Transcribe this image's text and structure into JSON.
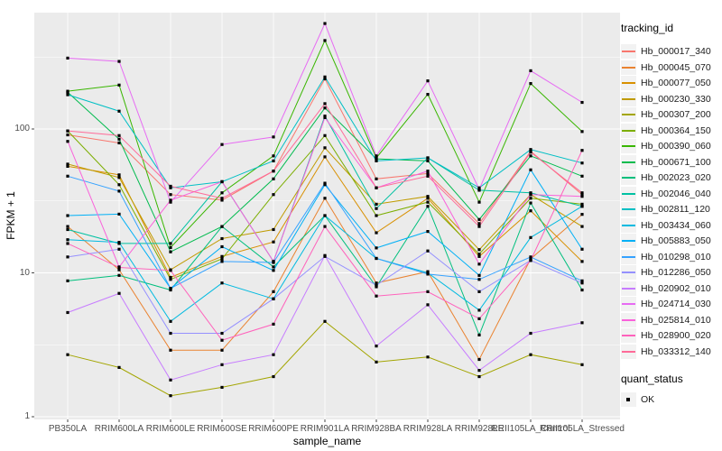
{
  "figure": {
    "background": "#FFFFFF",
    "panel_bg": "#EBEBEB",
    "grid_color": "#FFFFFF",
    "axis_text_color": "#4D4D4D",
    "point_color": "#000000",
    "legend_key_bg": "#F2F2F2"
  },
  "chart_data": {
    "type": "line",
    "title": "",
    "xlabel": "sample_name",
    "ylabel": "FPKM + 1",
    "y_scale": "log10",
    "y_ticks": [
      1,
      10,
      100
    ],
    "y_minor_ticks": [
      3.1623,
      31.623,
      316.23
    ],
    "ylim": [
      0.95,
      640
    ],
    "grid": true,
    "legend_position": "right",
    "legend_title": "tracking_id",
    "categories": [
      "PB350LA",
      "RRIM600LA",
      "RRIM600LE",
      "RRIM600SE",
      "RRIM600PE",
      "RRIM901LA",
      "RRIM928BA",
      "RRIM928LA",
      "RRIM928LE",
      "RRII105LA_Control",
      "RRII105LA_Stressed"
    ],
    "series": [
      {
        "name": "Hb_000017_340",
        "color": "#F8766D",
        "values": [
          91,
          80,
          35,
          32,
          51,
          223,
          45,
          49,
          22,
          70,
          35
        ]
      },
      {
        "name": "Hb_000045_070",
        "color": "#EA8331",
        "values": [
          21,
          10.5,
          2.9,
          2.9,
          7.4,
          33,
          8.5,
          10.2,
          2.5,
          12.5,
          25.5
        ]
      },
      {
        "name": "Hb_000077_050",
        "color": "#D89000",
        "values": [
          55,
          48,
          9.3,
          13,
          16.4,
          64,
          19,
          33,
          13,
          27,
          12
        ]
      },
      {
        "name": "Hb_000230_330",
        "color": "#C09B00",
        "values": [
          57,
          46,
          10.5,
          17.3,
          20,
          74,
          30,
          34,
          14.5,
          35,
          21
        ]
      },
      {
        "name": "Hb_000307_200",
        "color": "#A3A500",
        "values": [
          2.7,
          2.2,
          1.4,
          1.6,
          1.9,
          4.6,
          2.4,
          2.6,
          1.9,
          2.7,
          2.3
        ]
      },
      {
        "name": "Hb_000364_150",
        "color": "#7CAE00",
        "values": [
          97,
          41,
          9,
          12.5,
          35,
          90,
          25,
          31,
          13.5,
          33,
          30
        ]
      },
      {
        "name": "Hb_000390_060",
        "color": "#39B600",
        "values": [
          183,
          202,
          15,
          36,
          65,
          412,
          63,
          174,
          31,
          207,
          96
        ]
      },
      {
        "name": "Hb_000671_100",
        "color": "#00BB4E",
        "values": [
          180,
          85,
          14,
          21,
          45,
          140,
          62,
          60,
          23.5,
          65,
          47
        ]
      },
      {
        "name": "Hb_002023_020",
        "color": "#00BF7D",
        "values": [
          8.8,
          9.6,
          7.6,
          21,
          11,
          25,
          8,
          29,
          3.7,
          30.6,
          7.6
        ]
      },
      {
        "name": "Hb_002046_040",
        "color": "#00C1A3",
        "values": [
          20,
          16,
          16,
          43,
          12,
          123,
          28,
          63,
          37.5,
          36,
          29
        ]
      },
      {
        "name": "Hb_002811_120",
        "color": "#00BFC4",
        "values": [
          173,
          133,
          39,
          43,
          60,
          230,
          60,
          63,
          39,
          72,
          58
        ]
      },
      {
        "name": "Hb_003434_060",
        "color": "#00BAE0",
        "values": [
          17,
          16.3,
          4.6,
          8.5,
          6.6,
          25,
          12.6,
          10,
          5.5,
          17.6,
          29
        ]
      },
      {
        "name": "Hb_005883_050",
        "color": "#00B0F6",
        "values": [
          25,
          25.6,
          7.8,
          15.2,
          10.4,
          41,
          14.9,
          19.4,
          9.6,
          52,
          14.6
        ]
      },
      {
        "name": "Hb_010298_010",
        "color": "#35A2FF",
        "values": [
          47,
          37,
          7.8,
          12,
          11.8,
          42,
          12.6,
          9.8,
          9,
          12.9,
          8.8
        ]
      },
      {
        "name": "Hb_012286_050",
        "color": "#9590FF",
        "values": [
          12.9,
          14.6,
          3.8,
          3.8,
          6.6,
          13,
          8.2,
          14.2,
          7.4,
          12.2,
          8.5
        ]
      },
      {
        "name": "Hb_020902_010",
        "color": "#C77CFF",
        "values": [
          5.3,
          7.2,
          1.8,
          2.3,
          2.7,
          13.2,
          3.1,
          6,
          2.1,
          3.8,
          4.5
        ]
      },
      {
        "name": "Hb_024714_030",
        "color": "#E76BF3",
        "values": [
          311,
          295,
          31,
          78,
          88,
          541,
          65,
          216,
          38,
          254,
          153
        ]
      },
      {
        "name": "Hb_025814_010",
        "color": "#FA62DB",
        "values": [
          82,
          11,
          32,
          43,
          12,
          120,
          39,
          51,
          11.5,
          35,
          34
        ]
      },
      {
        "name": "Hb_028900_020",
        "color": "#FF62BC",
        "values": [
          16,
          10.9,
          10.4,
          3.4,
          4.4,
          21,
          6.9,
          7.4,
          4.8,
          12.2,
          71
        ]
      },
      {
        "name": "Hb_033312_140",
        "color": "#FF6A98",
        "values": [
          97,
          90,
          40,
          33,
          51,
          150,
          39,
          47,
          21,
          69,
          36
        ]
      }
    ],
    "legend2": {
      "title": "quant_status",
      "items": [
        {
          "label": "OK",
          "marker": "black-square"
        }
      ]
    }
  }
}
